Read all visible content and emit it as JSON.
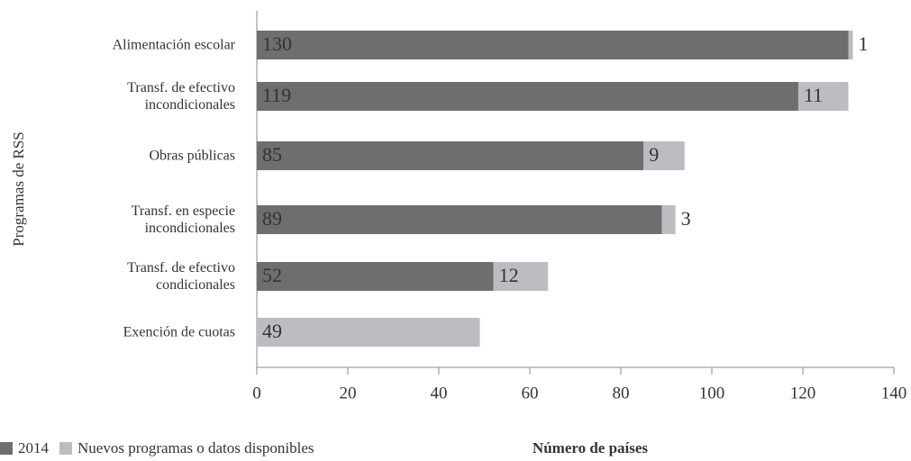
{
  "chart_data": {
    "type": "stacked-barh",
    "categories": [
      "Alimentación escolar",
      "Transf. de efectivo\nincondicionales",
      "Obras públicas",
      "Transf. en especie\nincondicionales",
      "Transf. de efectivo\ncondicionales",
      "Exención de cuotas"
    ],
    "series": [
      {
        "name": "2014",
        "color": "#6d6e70",
        "values": [
          130,
          119,
          85,
          89,
          52,
          null
        ]
      },
      {
        "name": "Nuevos programas o datos disponibles",
        "color": "#bcbdc0",
        "values": [
          1,
          11,
          9,
          3,
          12,
          49
        ]
      }
    ],
    "xlim": [
      0,
      140
    ],
    "xticks": [
      0,
      20,
      40,
      60,
      80,
      100,
      120,
      140
    ],
    "xlabel": "Número de países",
    "ylabel": "Programas de RSS",
    "legend": "bottom-left"
  }
}
